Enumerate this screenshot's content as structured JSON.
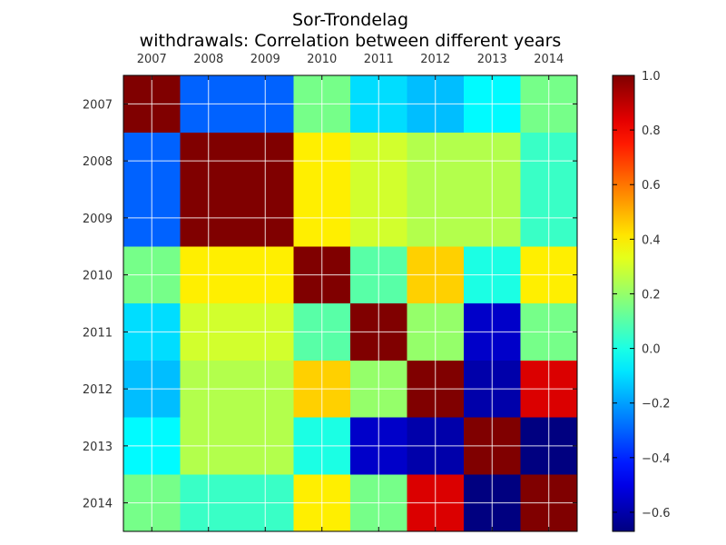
{
  "chart_data": {
    "type": "heatmap",
    "title": "Sor-Trondelag",
    "subtitle": "withdrawals: Correlation between different years",
    "xlabel": "",
    "ylabel": "",
    "categories": [
      "2007",
      "2008",
      "2009",
      "2010",
      "2011",
      "2012",
      "2013",
      "2014"
    ],
    "matrix": [
      [
        1.0,
        -0.3,
        -0.3,
        0.15,
        -0.1,
        -0.15,
        -0.05,
        0.15
      ],
      [
        -0.3,
        1.0,
        1.0,
        0.4,
        0.3,
        0.25,
        0.25,
        0.05
      ],
      [
        -0.3,
        1.0,
        1.0,
        0.4,
        0.3,
        0.25,
        0.25,
        0.05
      ],
      [
        0.15,
        0.4,
        0.4,
        1.0,
        0.1,
        0.45,
        0.0,
        0.4
      ],
      [
        -0.1,
        0.3,
        0.3,
        0.1,
        1.0,
        0.2,
        -0.55,
        0.15
      ],
      [
        -0.15,
        0.25,
        0.25,
        0.45,
        0.2,
        1.0,
        -0.6,
        0.85
      ],
      [
        -0.05,
        0.25,
        0.25,
        0.0,
        -0.55,
        -0.6,
        1.0,
        -0.7
      ],
      [
        0.15,
        0.05,
        0.05,
        0.4,
        0.15,
        0.85,
        -0.7,
        1.0
      ]
    ],
    "colormap": "jet",
    "colorbar": {
      "min": -0.67,
      "max": 1.0,
      "ticks": [
        1.0,
        0.8,
        0.6,
        0.4,
        0.2,
        0.0,
        -0.2,
        -0.4,
        -0.6
      ],
      "tick_labels": [
        "1.0",
        "0.8",
        "0.6",
        "0.4",
        "0.2",
        "0.0",
        "−0.2",
        "−0.4",
        "−0.6"
      ]
    },
    "x_axis_position": "top",
    "grid": true,
    "legend": "colorbar-right"
  }
}
